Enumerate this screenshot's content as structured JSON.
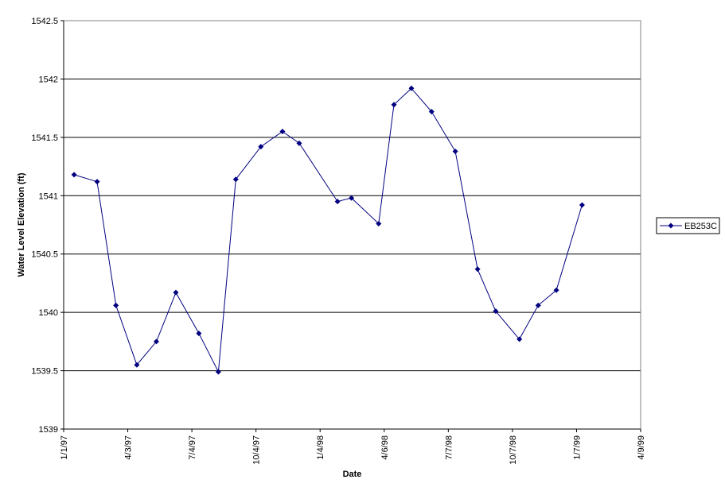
{
  "chart_data": {
    "type": "line",
    "title": "",
    "xlabel": "Date",
    "ylabel": "Water Level Elevation (ft)",
    "ylim": [
      1539,
      1542.5
    ],
    "y_ticks": [
      "1539",
      "1539.5",
      "1540",
      "1540.5",
      "1541",
      "1541.5",
      "1542",
      "1542.5"
    ],
    "xlim": [
      "1997-01-01",
      "1999-04-09"
    ],
    "x_ticks": [
      {
        "label": "1/1/97",
        "date": "1997-01-01"
      },
      {
        "label": "4/3/97",
        "date": "1997-04-03"
      },
      {
        "label": "7/4/97",
        "date": "1997-07-04"
      },
      {
        "label": "10/4/97",
        "date": "1997-10-04"
      },
      {
        "label": "1/4/98",
        "date": "1998-01-04"
      },
      {
        "label": "4/6/98",
        "date": "1998-04-06"
      },
      {
        "label": "7/7/98",
        "date": "1998-07-07"
      },
      {
        "label": "10/7/98",
        "date": "1998-10-07"
      },
      {
        "label": "1/7/99",
        "date": "1999-01-07"
      },
      {
        "label": "4/9/99",
        "date": "1999-04-09"
      }
    ],
    "grid": "horizontal",
    "legend_position": "right",
    "series": [
      {
        "name": "EB253C",
        "color": "#000080",
        "marker": "diamond",
        "points": [
          {
            "x": "1997-01-16",
            "y": 1541.18
          },
          {
            "x": "1997-02-18",
            "y": 1541.12
          },
          {
            "x": "1997-03-17",
            "y": 1540.06
          },
          {
            "x": "1997-04-16",
            "y": 1539.55
          },
          {
            "x": "1997-05-14",
            "y": 1539.75
          },
          {
            "x": "1997-06-11",
            "y": 1540.17
          },
          {
            "x": "1997-07-14",
            "y": 1539.82
          },
          {
            "x": "1997-08-11",
            "y": 1539.49
          },
          {
            "x": "1997-09-05",
            "y": 1541.14
          },
          {
            "x": "1997-10-11",
            "y": 1541.42
          },
          {
            "x": "1997-11-11",
            "y": 1541.55
          },
          {
            "x": "1997-12-05",
            "y": 1541.45
          },
          {
            "x": "1998-01-29",
            "y": 1540.95
          },
          {
            "x": "1998-02-18",
            "y": 1540.98
          },
          {
            "x": "1998-03-29",
            "y": 1540.76
          },
          {
            "x": "1998-04-20",
            "y": 1541.78
          },
          {
            "x": "1998-05-15",
            "y": 1541.92
          },
          {
            "x": "1998-06-13",
            "y": 1541.72
          },
          {
            "x": "1998-07-17",
            "y": 1541.38
          },
          {
            "x": "1998-08-18",
            "y": 1540.37
          },
          {
            "x": "1998-09-13",
            "y": 1540.01
          },
          {
            "x": "1998-10-17",
            "y": 1539.77
          },
          {
            "x": "1998-11-13",
            "y": 1540.06
          },
          {
            "x": "1998-12-09",
            "y": 1540.19
          },
          {
            "x": "1999-01-15",
            "y": 1540.92
          }
        ]
      }
    ]
  }
}
